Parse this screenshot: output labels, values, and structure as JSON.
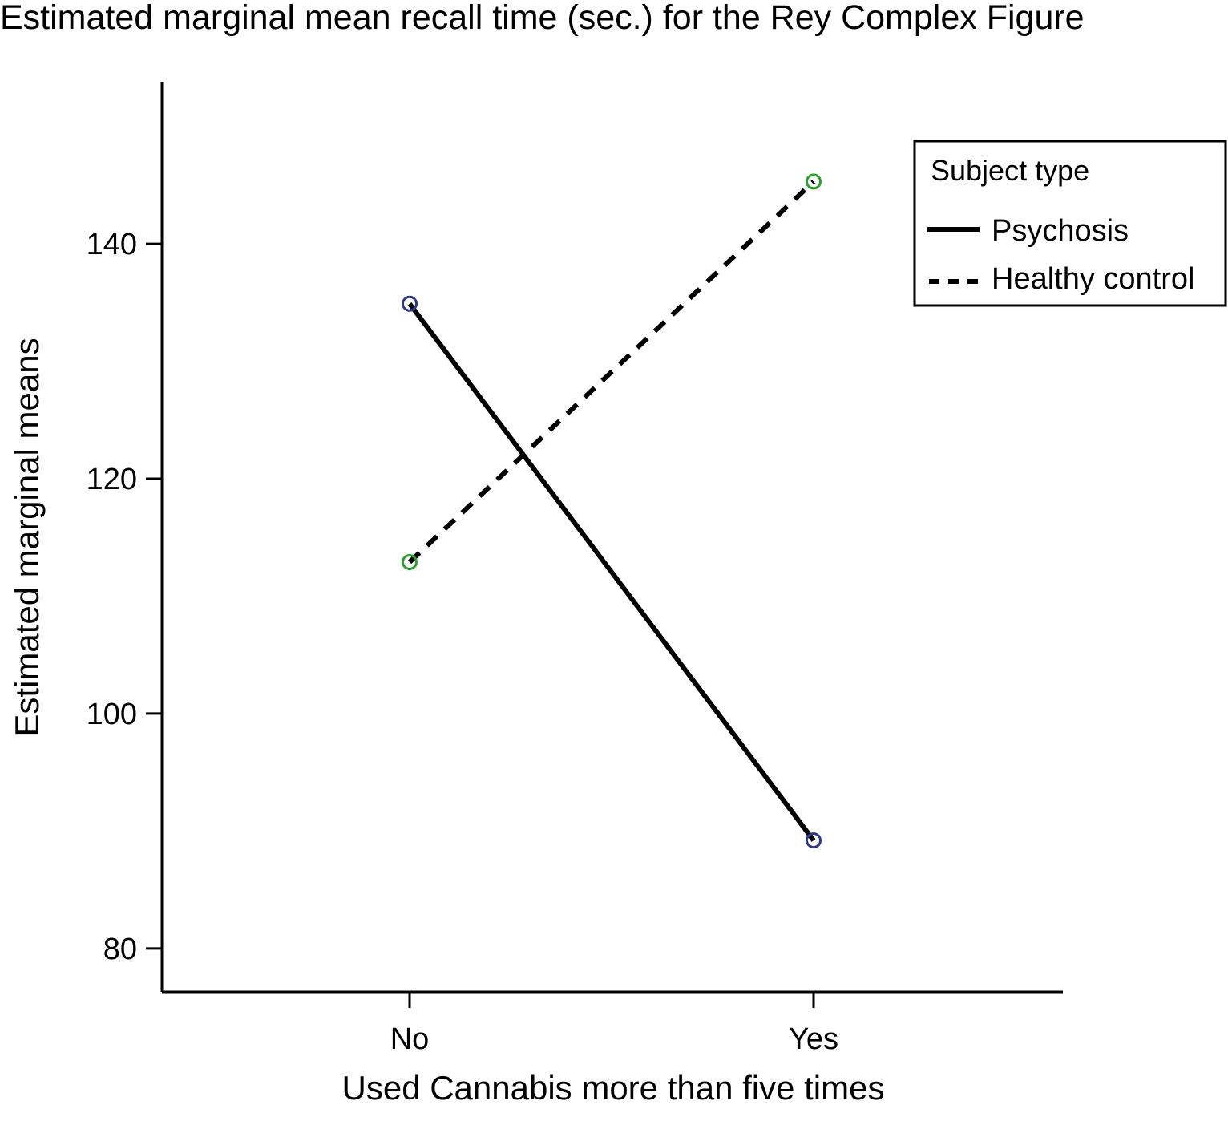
{
  "chart_data": {
    "type": "line",
    "title": "Estimated marginal mean recall time (sec.) for the Rey Complex Figure",
    "xlabel": "Used Cannabis more than five times",
    "ylabel": "Estimated marginal means",
    "categories": [
      "No",
      "Yes"
    ],
    "y_ticks": [
      80,
      100,
      120,
      140
    ],
    "ylim": [
      76.3,
      153.8
    ],
    "grid": false,
    "legend": {
      "title": "Subject type",
      "placement": "top-right"
    },
    "series": [
      {
        "name": "Psychosis",
        "values": [
          134.9,
          89.2
        ],
        "line_style": "solid",
        "line_color": "#000000",
        "marker_color": "#2b3a8c"
      },
      {
        "name": "Healthy control",
        "values": [
          112.9,
          145.3
        ],
        "line_style": "dashed",
        "line_color": "#000000",
        "marker_color": "#2ca02c"
      }
    ]
  }
}
